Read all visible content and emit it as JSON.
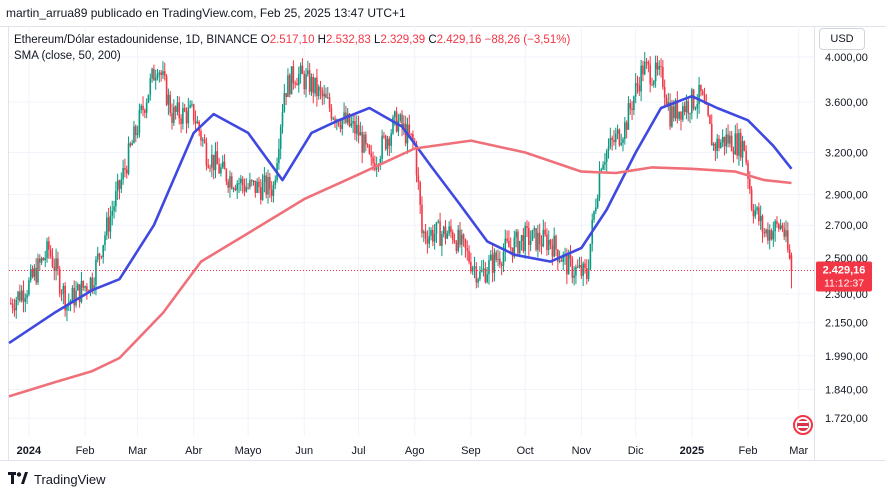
{
  "header": {
    "publish_line": "martin_arrua89 publicado en TradingView.com, Feb 25, 2025 13:47 UTC+1"
  },
  "legend": {
    "symbol": "Ethereum/Dólar estadounidense, 1D, BINANCE",
    "o_key": "O",
    "o_val": "2.517,10",
    "h_key": "H",
    "h_val": "2.532,83",
    "l_key": "L",
    "l_val": "2.329,39",
    "c_key": "C",
    "c_val": "2.429,16",
    "change": "−88,26 (−3,51%)",
    "sma": "SMA (close, 50, 200)"
  },
  "currency": "USD",
  "price_badge": {
    "price": "2.429,16",
    "countdown": "11:12:37"
  },
  "footer": {
    "brand": "TradingView"
  },
  "colors": {
    "up": "#089981",
    "down": "#f23645",
    "sma50": "#3f49e0",
    "sma200": "#f0707a",
    "badge": "#f23645"
  },
  "chart_data": {
    "type": "candlestick",
    "title": "Ethereum/Dólar estadounidense, 1D, BINANCE",
    "y_axis_ticks": [
      "4.000,00",
      "3.600,00",
      "3.200,00",
      "2.900,00",
      "2.700,00",
      "2.500,00",
      "2.300,00",
      "2.150,00",
      "1.990,00",
      "1.840,00",
      "1.720,00"
    ],
    "y_axis_values": [
      4000,
      3600,
      3200,
      2900,
      2700,
      2500,
      2300,
      2150,
      1990,
      1840,
      1720
    ],
    "y_scale": "log",
    "ylim": [
      1650,
      4300
    ],
    "x_axis_labels": [
      "2024",
      "Feb",
      "Mar",
      "Abr",
      "Mayo",
      "Jun",
      "Jul",
      "Ago",
      "Sep",
      "Oct",
      "Nov",
      "Dic",
      "2025",
      "Feb",
      "Mar"
    ],
    "x_axis_dates": [
      "2024-01-01",
      "2024-02-01",
      "2024-03-01",
      "2024-04-01",
      "2024-05-01",
      "2024-06-01",
      "2024-07-01",
      "2024-08-01",
      "2024-09-01",
      "2024-10-01",
      "2024-11-01",
      "2024-12-01",
      "2025-01-01",
      "2025-02-01",
      "2025-03-01"
    ],
    "xlim": [
      "2023-12-21",
      "2025-03-10"
    ],
    "last_price": 2429.16,
    "price_series": {
      "name": "ETH/USD",
      "dates": [
        "2023-12-22",
        "2024-01-01",
        "2024-01-12",
        "2024-01-22",
        "2024-02-05",
        "2024-02-20",
        "2024-03-01",
        "2024-03-12",
        "2024-03-20",
        "2024-04-01",
        "2024-04-08",
        "2024-04-17",
        "2024-05-01",
        "2024-05-15",
        "2024-05-21",
        "2024-05-27",
        "2024-06-05",
        "2024-06-18",
        "2024-07-01",
        "2024-07-08",
        "2024-07-22",
        "2024-08-01",
        "2024-08-05",
        "2024-08-22",
        "2024-09-06",
        "2024-09-20",
        "2024-10-01",
        "2024-10-15",
        "2024-10-25",
        "2024-11-04",
        "2024-11-12",
        "2024-11-25",
        "2024-12-05",
        "2024-12-16",
        "2024-12-20",
        "2025-01-06",
        "2025-01-13",
        "2025-01-20",
        "2025-01-30",
        "2025-02-03",
        "2025-02-10",
        "2025-02-20",
        "2025-02-25"
      ],
      "close": [
        2250,
        2350,
        2550,
        2250,
        2380,
        2950,
        3400,
        3950,
        3500,
        3500,
        3200,
        3050,
        2950,
        2950,
        3700,
        3850,
        3750,
        3500,
        3350,
        3100,
        3450,
        3250,
        2650,
        2650,
        2400,
        2550,
        2620,
        2600,
        2450,
        2400,
        3150,
        3400,
        3900,
        3800,
        3500,
        3650,
        3250,
        3300,
        3250,
        2850,
        2650,
        2700,
        2429.16
      ]
    },
    "series": [
      {
        "name": "SMA 50",
        "dates": [
          "2023-12-21",
          "2024-01-15",
          "2024-02-05",
          "2024-02-20",
          "2024-03-10",
          "2024-04-01",
          "2024-04-12",
          "2024-05-01",
          "2024-05-20",
          "2024-06-05",
          "2024-06-20",
          "2024-07-07",
          "2024-07-25",
          "2024-08-10",
          "2024-08-25",
          "2024-09-10",
          "2024-09-25",
          "2024-10-15",
          "2024-11-01",
          "2024-11-15",
          "2024-12-01",
          "2024-12-15",
          "2025-01-01",
          "2025-01-15",
          "2025-02-01",
          "2025-02-15",
          "2025-02-25"
        ],
        "values": [
          2050,
          2200,
          2320,
          2380,
          2700,
          3350,
          3500,
          3350,
          3000,
          3350,
          3450,
          3550,
          3400,
          3100,
          2850,
          2600,
          2520,
          2480,
          2560,
          2800,
          3200,
          3550,
          3650,
          3550,
          3450,
          3250,
          3080
        ]
      },
      {
        "name": "SMA 200",
        "dates": [
          "2023-12-21",
          "2024-01-15",
          "2024-02-05",
          "2024-02-20",
          "2024-03-15",
          "2024-04-05",
          "2024-05-01",
          "2024-06-01",
          "2024-07-01",
          "2024-08-01",
          "2024-09-01",
          "2024-10-01",
          "2024-11-01",
          "2024-11-20",
          "2024-12-10",
          "2025-01-01",
          "2025-01-25",
          "2025-02-10",
          "2025-02-25"
        ],
        "values": [
          1810,
          1870,
          1920,
          1980,
          2200,
          2480,
          2650,
          2870,
          3040,
          3230,
          3290,
          3200,
          3060,
          3050,
          3090,
          3080,
          3060,
          3000,
          2980
        ]
      }
    ]
  }
}
